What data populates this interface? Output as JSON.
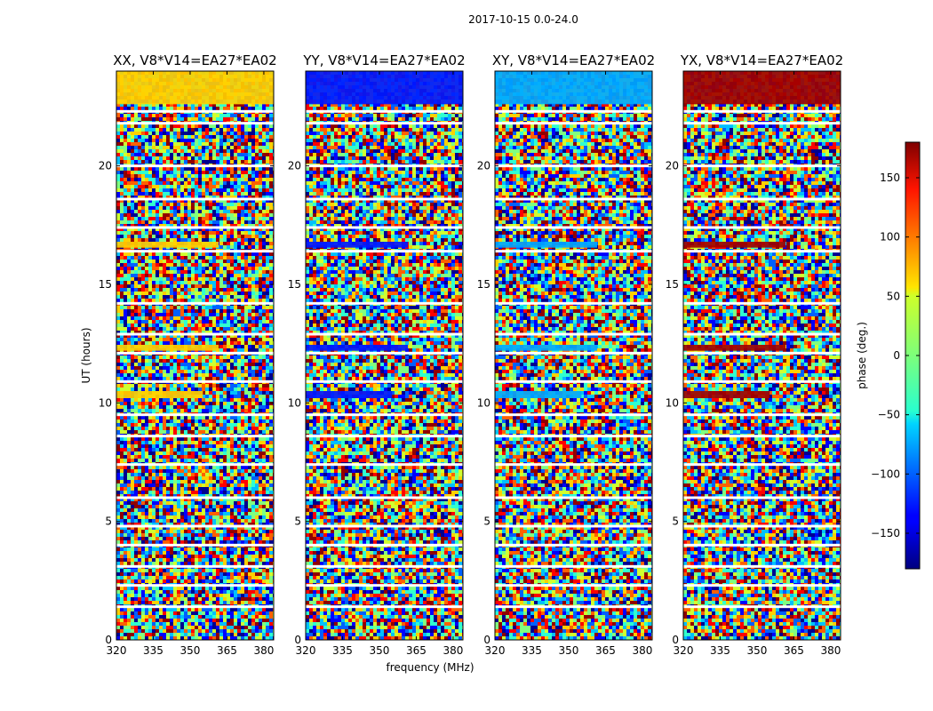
{
  "figure": {
    "suptitle": "2017-10-15 0.0-24.0",
    "xlabel": "frequency (MHz)",
    "ylabel": "UT (hours)"
  },
  "colorbar": {
    "label": "phase (deg.)",
    "range": [
      -180,
      180
    ],
    "ticks": [
      "150",
      "100",
      "50",
      "0",
      "−50",
      "−100",
      "−150"
    ],
    "tick_values": [
      150,
      100,
      50,
      0,
      -50,
      -100,
      -150
    ],
    "colormap": "jet"
  },
  "chart_data": {
    "type": "heatmap",
    "x_range_mhz": [
      320,
      384
    ],
    "y_range_hours": [
      0,
      24
    ],
    "x_ticks": [
      "320",
      "335",
      "350",
      "365",
      "380"
    ],
    "x_tick_values": [
      320,
      335,
      350,
      365,
      380
    ],
    "y_ticks": [
      "0",
      "5",
      "10",
      "15",
      "20"
    ],
    "y_tick_values": [
      0,
      5,
      10,
      15,
      20
    ],
    "value_label": "phase (deg.)",
    "panels": [
      {
        "title": "XX, V8*V14=EA27*EA02",
        "band_color": "#ffd000"
      },
      {
        "title": "YY, V8*V14=EA27*EA02",
        "band_color": "#0018ff"
      },
      {
        "title": "XY, V8*V14=EA27*EA02",
        "band_color": "#00a8ff"
      },
      {
        "title": "YX, V8*V14=EA27*EA02",
        "band_color": "#a00000"
      }
    ]
  }
}
